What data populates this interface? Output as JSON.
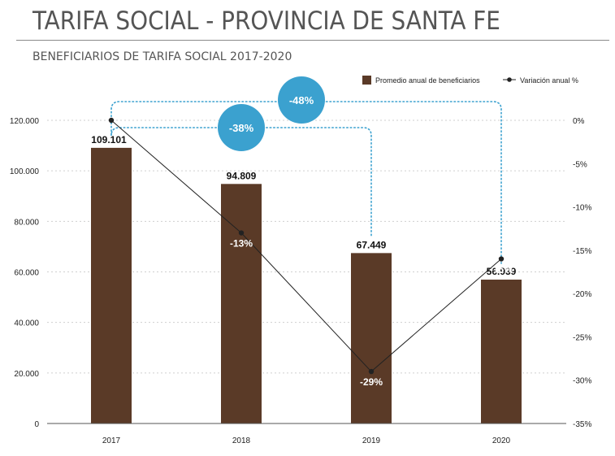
{
  "page": {
    "title": "TARIFA SOCIAL - PROVINCIA DE SANTA FE",
    "subtitle": "BENEFICIARIOS DE TARIFA SOCIAL 2017-2020"
  },
  "colors": {
    "bar": "#5a3a27",
    "line": "#222222",
    "callout": "#3ba1cf",
    "grid": "#cfcfcf",
    "title": "#555555"
  },
  "chart_data": {
    "type": "bar",
    "categories": [
      "2017",
      "2018",
      "2019",
      "2020"
    ],
    "series": [
      {
        "name": "Promedio anual de beneficiarios",
        "type": "bar",
        "axis": "left",
        "values": [
          109101,
          94809,
          67449,
          56939
        ],
        "labels": [
          "109.101",
          "94.809",
          "67.449",
          "56.939"
        ]
      },
      {
        "name": "Variación anual %",
        "type": "line",
        "axis": "right",
        "values": [
          0,
          -13,
          -29,
          -16
        ],
        "labels": [
          "",
          "-13%",
          "-29%",
          "-16%"
        ]
      }
    ],
    "y_left": {
      "range": [
        0,
        120000
      ],
      "ticks": [
        0,
        20000,
        40000,
        60000,
        80000,
        100000,
        120000
      ],
      "tick_labels": [
        "0",
        "20.000",
        "40.000",
        "60.000",
        "80.000",
        "100.000",
        "120.000"
      ]
    },
    "y_right": {
      "range": [
        -35,
        0
      ],
      "ticks": [
        0,
        -5,
        -10,
        -15,
        -20,
        -25,
        -30,
        -35
      ],
      "tick_labels": [
        "0%",
        "-5%",
        "-10%",
        "-15%",
        "-20%",
        "-25%",
        "-30%",
        "-35%"
      ]
    },
    "callouts": [
      {
        "label": "-38%",
        "from": "2017",
        "to": "2019"
      },
      {
        "label": "-48%",
        "from": "2017",
        "to": "2020"
      }
    ],
    "legend_position": "top-right",
    "grid": true
  }
}
